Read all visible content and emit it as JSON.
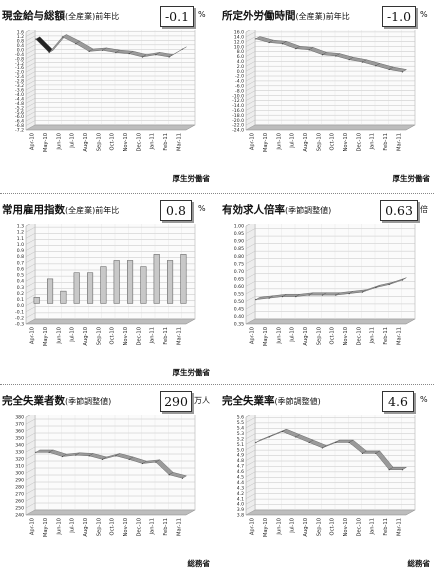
{
  "panels": [
    {
      "title": "現金給与総額",
      "subtitle": "(全産業)",
      "title_suffix": "前年比",
      "value": "-0.1",
      "unit": "%",
      "source": "厚生労働省"
    },
    {
      "title": "所定外労働時間",
      "subtitle": "(全産業)",
      "title_suffix": "前年比",
      "value": "-1.0",
      "unit": "%",
      "source": "厚生労働省"
    },
    {
      "title": "常用雇用指数",
      "subtitle": "(全産業)",
      "title_suffix": "前年比",
      "value": "0.8",
      "unit": "%",
      "source": "厚生労働省"
    },
    {
      "title": "有効求人倍率",
      "subtitle": "(季節調整値)",
      "title_suffix": "",
      "value": "0.63",
      "unit": "倍",
      "source": ""
    },
    {
      "title": "完全失業者数",
      "subtitle": "(季節調整値)",
      "title_suffix": "",
      "value": "290",
      "unit": "万人",
      "source": "総務省"
    },
    {
      "title": "完全失業率",
      "subtitle": "(季節調整値)",
      "title_suffix": "",
      "value": "4.6",
      "unit": "%",
      "source": "総務省"
    }
  ],
  "chart_data": [
    {
      "type": "line",
      "x": [
        "Apr-10",
        "May-10",
        "Jun-10",
        "Jul-10",
        "Aug-10",
        "Sep-10",
        "Oct-10",
        "Nov-10",
        "Dec-10",
        "Jan-11",
        "Feb-11",
        "Mar-11"
      ],
      "y_ticks": [
        "1.6",
        "1.2",
        "0.8",
        "0.4",
        "0.0",
        "-0.4",
        "-0.8",
        "-1.2",
        "-1.6",
        "-2.0",
        "-2.4",
        "-2.8",
        "-3.2",
        "-3.6",
        "-4.0",
        "-4.4",
        "-4.8",
        "-5.2",
        "-5.6",
        "-6.0",
        "-6.4",
        "-6.8",
        "-7.2"
      ],
      "ylim": [
        -7.2,
        1.6
      ],
      "values": [
        0.8,
        -0.4,
        1.0,
        0.4,
        -0.3,
        -0.2,
        -0.4,
        -0.5,
        -0.8,
        -0.6,
        -0.8,
        -0.1
      ]
    },
    {
      "type": "line",
      "x": [
        "Apr-10",
        "May-10",
        "Jun-10",
        "Jul-10",
        "Aug-10",
        "Sep-10",
        "Oct-10",
        "Nov-10",
        "Dec-10",
        "Jan-11",
        "Feb-11",
        "Mar-11"
      ],
      "y_ticks": [
        "16.0",
        "14.0",
        "12.0",
        "10.0",
        "8.0",
        "6.0",
        "4.0",
        "2.0",
        "0.0",
        "-2.0",
        "-4.0",
        "-6.0",
        "-8.0",
        "-10.0",
        "-12.0",
        "-14.0",
        "-16.0",
        "-18.0",
        "-20.0",
        "-22.0",
        "-24.0"
      ],
      "ylim": [
        -24,
        16
      ],
      "values": [
        12.5,
        11.0,
        10.5,
        8.5,
        8.0,
        6.0,
        5.5,
        4.0,
        3.0,
        1.5,
        0.0,
        -1.0
      ]
    },
    {
      "type": "bar",
      "categories": [
        "Apr-10",
        "May-10",
        "Jun-10",
        "Jul-10",
        "Aug-10",
        "Sep-10",
        "Oct-10",
        "Nov-10",
        "Dec-10",
        "Jan-11",
        "Feb-11",
        "Mar-11"
      ],
      "y_ticks": [
        "1.3",
        "1.2",
        "1.1",
        "1.0",
        "0.9",
        "0.8",
        "0.7",
        "0.6",
        "0.5",
        "0.4",
        "0.3",
        "0.2",
        "0.1",
        "0.0",
        "-0.1",
        "-0.2",
        "-0.3"
      ],
      "ylim": [
        -0.3,
        1.3
      ],
      "values": [
        0.1,
        0.4,
        0.2,
        0.5,
        0.5,
        0.6,
        0.7,
        0.7,
        0.6,
        0.8,
        0.7,
        0.8
      ]
    },
    {
      "type": "line",
      "x": [
        "Apr-10",
        "May-10",
        "Jun-10",
        "Jul-10",
        "Aug-10",
        "Sep-10",
        "Oct-10",
        "Nov-10",
        "Dec-10",
        "Jan-11",
        "Feb-11",
        "Mar-11"
      ],
      "y_ticks": [
        "1.00",
        "0.95",
        "0.90",
        "0.85",
        "0.80",
        "0.75",
        "0.70",
        "0.65",
        "0.60",
        "0.55",
        "0.50",
        "0.45",
        "0.40",
        "0.35"
      ],
      "ylim": [
        0.35,
        1.0
      ],
      "values": [
        0.5,
        0.51,
        0.52,
        0.52,
        0.53,
        0.53,
        0.53,
        0.54,
        0.55,
        0.58,
        0.6,
        0.63
      ]
    },
    {
      "type": "line",
      "x": [
        "Apr-10",
        "May-10",
        "Jun-10",
        "Jul-10",
        "Aug-10",
        "Sep-10",
        "Oct-10",
        "Nov-10",
        "Dec-10",
        "Jan-11",
        "Feb-11",
        "Mar-11"
      ],
      "y_ticks": [
        "380",
        "370",
        "360",
        "350",
        "340",
        "330",
        "320",
        "310",
        "300",
        "290",
        "280",
        "270",
        "260",
        "250",
        "240"
      ],
      "ylim": [
        240,
        380
      ],
      "values": [
        327,
        327,
        321,
        323,
        322,
        317,
        322,
        317,
        311,
        313,
        295,
        290
      ]
    },
    {
      "type": "line",
      "x": [
        "Apr-10",
        "May-10",
        "Jun-10",
        "Jul-10",
        "Aug-10",
        "Sep-10",
        "Oct-10",
        "Nov-10",
        "Dec-10",
        "Jan-11",
        "Feb-11",
        "Mar-11"
      ],
      "y_ticks": [
        "5.6",
        "5.5",
        "5.4",
        "5.3",
        "5.2",
        "5.1",
        "5.0",
        "4.9",
        "4.8",
        "4.7",
        "4.6",
        "4.5",
        "4.4",
        "4.3",
        "4.2",
        "4.1",
        "4.0",
        "3.9",
        "3.8"
      ],
      "ylim": [
        3.8,
        5.6
      ],
      "values": [
        5.1,
        5.2,
        5.3,
        5.2,
        5.1,
        5.0,
        5.1,
        5.1,
        4.9,
        4.9,
        4.6,
        4.6
      ]
    }
  ]
}
